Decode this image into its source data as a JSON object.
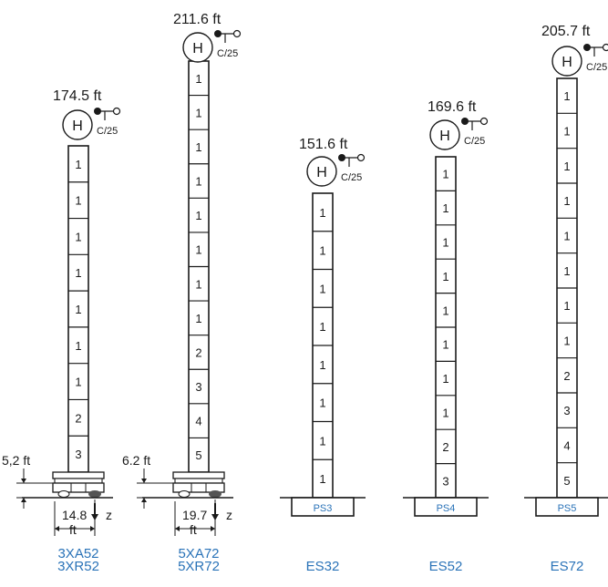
{
  "towers": [
    {
      "height": "174.5 ft",
      "hook_letter": "H",
      "hook_tag": "C/25",
      "sections": [
        "1",
        "1",
        "1",
        "1",
        "1",
        "1",
        "1",
        "2",
        "3"
      ],
      "base_type": "mobile",
      "underclearance": "5,2 ft",
      "track_width": "14.8",
      "track_unit": "ft",
      "axis_label": "z",
      "model_lines": [
        "3XA52",
        "3XR52"
      ]
    },
    {
      "height": "211.6 ft",
      "hook_letter": "H",
      "hook_tag": "C/25",
      "sections": [
        "1",
        "1",
        "1",
        "1",
        "1",
        "1",
        "1",
        "1",
        "2",
        "3",
        "4",
        "5"
      ],
      "base_type": "mobile",
      "underclearance": "6.2 ft",
      "track_width": "19.7",
      "track_unit": "ft",
      "axis_label": "z",
      "model_lines": [
        "5XA72",
        "5XR72"
      ]
    },
    {
      "height": "151.6 ft",
      "hook_letter": "H",
      "hook_tag": "C/25",
      "sections": [
        "1",
        "1",
        "1",
        "1",
        "1",
        "1",
        "1",
        "1"
      ],
      "base_type": "pad",
      "pad_label": "PS3",
      "model_lines": [
        "ES32"
      ]
    },
    {
      "height": "169.6 ft",
      "hook_letter": "H",
      "hook_tag": "C/25",
      "sections": [
        "1",
        "1",
        "1",
        "1",
        "1",
        "1",
        "1",
        "1",
        "2",
        "3"
      ],
      "base_type": "pad",
      "pad_label": "PS4",
      "model_lines": [
        "ES52"
      ]
    },
    {
      "height": "205.7 ft",
      "hook_letter": "H",
      "hook_tag": "C/25",
      "sections": [
        "1",
        "1",
        "1",
        "1",
        "1",
        "1",
        "1",
        "1",
        "2",
        "3",
        "4",
        "5"
      ],
      "base_type": "pad",
      "pad_label": "PS5",
      "model_lines": [
        "ES72"
      ]
    }
  ],
  "colors": {
    "line": "#1a1a1a",
    "accent": "#2a73b8"
  }
}
